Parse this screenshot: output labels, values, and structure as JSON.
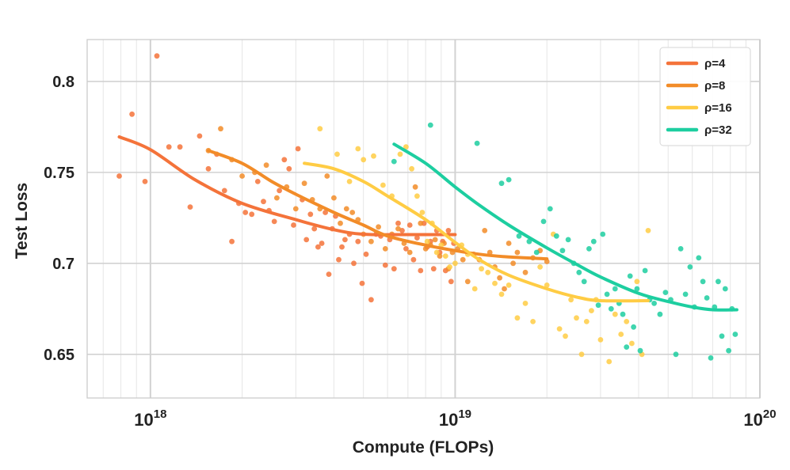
{
  "chart_data": {
    "type": "scatter",
    "xlabel": "Compute (FLOPs)",
    "ylabel": "Test Loss",
    "xscale": "log",
    "xlim": [
      6.2e+17,
      1e+20
    ],
    "ylim": [
      0.626,
      0.823
    ],
    "grid": true,
    "legend_position": "top-right",
    "x_ticks": [
      {
        "value": 1e+18,
        "base": "10",
        "exp": "18"
      },
      {
        "value": 1e+19,
        "base": "10",
        "exp": "19"
      },
      {
        "value": 1e+20,
        "base": "10",
        "exp": "20"
      }
    ],
    "y_ticks": [
      {
        "value": 0.65,
        "label": "0.65"
      },
      {
        "value": 0.7,
        "label": "0.7"
      },
      {
        "value": 0.75,
        "label": "0.75"
      },
      {
        "value": 0.8,
        "label": "0.8"
      }
    ],
    "series": [
      {
        "name": "ρ=4",
        "color": "#F4733A",
        "fit": [
          [
            7.9e+17,
            0.7695
          ],
          [
            1e+18,
            0.7625
          ],
          [
            1.4e+18,
            0.746
          ],
          [
            2e+18,
            0.733
          ],
          [
            3e+18,
            0.724
          ],
          [
            4e+18,
            0.7185
          ],
          [
            5e+18,
            0.716
          ],
          [
            7e+18,
            0.7158
          ],
          [
            1e+19,
            0.7158
          ]
        ],
        "points": [
          [
            7.9e+17,
            0.748
          ],
          [
            8.7e+17,
            0.782
          ],
          [
            9.6e+17,
            0.745
          ],
          [
            1.05e+18,
            0.814
          ],
          [
            1.15e+18,
            0.764
          ],
          [
            1.25e+18,
            0.764
          ],
          [
            1.35e+18,
            0.731
          ],
          [
            1.45e+18,
            0.77
          ],
          [
            1.55e+18,
            0.752
          ],
          [
            1.65e+18,
            0.76
          ],
          [
            1.75e+18,
            0.74
          ],
          [
            1.85e+18,
            0.712
          ],
          [
            1.95e+18,
            0.733
          ],
          [
            2.05e+18,
            0.728
          ],
          [
            2.15e+18,
            0.727
          ],
          [
            2.25e+18,
            0.745
          ],
          [
            2.35e+18,
            0.734
          ],
          [
            2.45e+18,
            0.729
          ],
          [
            2.55e+18,
            0.723
          ],
          [
            2.65e+18,
            0.74
          ],
          [
            2.75e+18,
            0.757
          ],
          [
            2.85e+18,
            0.752
          ],
          [
            2.95e+18,
            0.721
          ],
          [
            3.05e+18,
            0.763
          ],
          [
            3.15e+18,
            0.735
          ],
          [
            3.25e+18,
            0.713
          ],
          [
            3.35e+18,
            0.727
          ],
          [
            3.45e+18,
            0.719
          ],
          [
            3.55e+18,
            0.709
          ],
          [
            3.65e+18,
            0.711
          ],
          [
            3.75e+18,
            0.728
          ],
          [
            3.85e+18,
            0.694
          ],
          [
            3.95e+18,
            0.719
          ],
          [
            4.05e+18,
            0.726
          ],
          [
            4.15e+18,
            0.702
          ],
          [
            4.25e+18,
            0.709
          ],
          [
            4.35e+18,
            0.713
          ],
          [
            4.5e+18,
            0.716
          ],
          [
            4.65e+18,
            0.7
          ],
          [
            4.8e+18,
            0.712
          ],
          [
            4.95e+18,
            0.689
          ],
          [
            5.1e+18,
            0.705
          ],
          [
            5.3e+18,
            0.68
          ],
          [
            5.5e+18,
            0.716
          ],
          [
            5.7e+18,
            0.715
          ],
          [
            5.9e+18,
            0.699
          ],
          [
            6.1e+18,
            0.713
          ],
          [
            6.3e+18,
            0.697
          ],
          [
            6.5e+18,
            0.722
          ],
          [
            6.7e+18,
            0.718
          ],
          [
            6.9e+18,
            0.708
          ],
          [
            7.1e+18,
            0.721
          ],
          [
            7.3e+18,
            0.702
          ],
          [
            7.5e+18,
            0.714
          ],
          [
            7.7e+18,
            0.696
          ],
          [
            7.9e+18,
            0.722
          ],
          [
            8.1e+18,
            0.709
          ],
          [
            8.3e+18,
            0.712
          ],
          [
            8.5e+18,
            0.697
          ],
          [
            8.7e+18,
            0.718
          ],
          [
            8.9e+18,
            0.706
          ],
          [
            9.1e+18,
            0.712
          ],
          [
            9.3e+18,
            0.696
          ],
          [
            9.5e+18,
            0.718
          ],
          [
            9.7e+18,
            0.69
          ],
          [
            9.9e+18,
            0.711
          ]
        ]
      },
      {
        "name": "ρ=8",
        "color": "#F28C28",
        "fit": [
          [
            1.55e+18,
            0.762
          ],
          [
            2e+18,
            0.755
          ],
          [
            2.5e+18,
            0.745
          ],
          [
            3e+18,
            0.738
          ],
          [
            4e+18,
            0.728
          ],
          [
            5e+18,
            0.721
          ],
          [
            6e+18,
            0.715
          ],
          [
            8e+18,
            0.71
          ],
          [
            1e+19,
            0.707
          ],
          [
            1.2e+19,
            0.705
          ],
          [
            1.5e+19,
            0.7035
          ],
          [
            2e+19,
            0.7025
          ]
        ],
        "points": [
          [
            1.55e+18,
            0.762
          ],
          [
            1.7e+18,
            0.774
          ],
          [
            1.85e+18,
            0.757
          ],
          [
            2e+18,
            0.748
          ],
          [
            2.2e+18,
            0.75
          ],
          [
            2.4e+18,
            0.754
          ],
          [
            2.6e+18,
            0.736
          ],
          [
            2.8e+18,
            0.742
          ],
          [
            3e+18,
            0.73
          ],
          [
            3.2e+18,
            0.744
          ],
          [
            3.4e+18,
            0.735
          ],
          [
            3.6e+18,
            0.73
          ],
          [
            3.8e+18,
            0.748
          ],
          [
            4e+18,
            0.736
          ],
          [
            4.2e+18,
            0.722
          ],
          [
            4.4e+18,
            0.73
          ],
          [
            4.6e+18,
            0.728
          ],
          [
            4.8e+18,
            0.724
          ],
          [
            5e+18,
            0.716
          ],
          [
            5.3e+18,
            0.712
          ],
          [
            5.6e+18,
            0.72
          ],
          [
            5.9e+18,
            0.708
          ],
          [
            6.2e+18,
            0.716
          ],
          [
            6.5e+18,
            0.719
          ],
          [
            6.8e+18,
            0.711
          ],
          [
            7.1e+18,
            0.706
          ],
          [
            7.4e+18,
            0.742
          ],
          [
            7.7e+18,
            0.722
          ],
          [
            8e+18,
            0.708
          ],
          [
            8.3e+18,
            0.71
          ],
          [
            8.6e+18,
            0.713
          ],
          [
            8.9e+18,
            0.704
          ],
          [
            9.2e+18,
            0.711
          ],
          [
            9.5e+18,
            0.697
          ],
          [
            9.8e+18,
            0.706
          ],
          [
            1.02e+19,
            0.708
          ],
          [
            1.06e+19,
            0.702
          ],
          [
            1.1e+19,
            0.69
          ],
          [
            1.15e+19,
            0.705
          ],
          [
            1.2e+19,
            0.702
          ],
          [
            1.25e+19,
            0.718
          ],
          [
            1.3e+19,
            0.706
          ],
          [
            1.35e+19,
            0.698
          ],
          [
            1.4e+19,
            0.692
          ],
          [
            1.45e+19,
            0.686
          ],
          [
            1.5e+19,
            0.711
          ],
          [
            1.55e+19,
            0.7
          ],
          [
            1.6e+19,
            0.706
          ],
          [
            1.7e+19,
            0.695
          ],
          [
            1.8e+19,
            0.703
          ],
          [
            1.9e+19,
            0.707
          ],
          [
            2e+19,
            0.701
          ]
        ]
      },
      {
        "name": "ρ=16",
        "color": "#FFCC44",
        "fit": [
          [
            3.2e+18,
            0.755
          ],
          [
            4e+18,
            0.752
          ],
          [
            5e+18,
            0.745
          ],
          [
            6e+18,
            0.737
          ],
          [
            8e+18,
            0.724
          ],
          [
            1e+19,
            0.7115
          ],
          [
            1.2e+19,
            0.702
          ],
          [
            1.5e+19,
            0.6935
          ],
          [
            2e+19,
            0.686
          ],
          [
            2.5e+19,
            0.6815
          ],
          [
            3e+19,
            0.6795
          ],
          [
            4.3e+19,
            0.6795
          ]
        ],
        "points": [
          [
            3.6e+18,
            0.774
          ],
          [
            4.1e+18,
            0.76
          ],
          [
            4.5e+18,
            0.745
          ],
          [
            4.8e+18,
            0.763
          ],
          [
            5e+18,
            0.757
          ],
          [
            5.4e+18,
            0.759
          ],
          [
            5.8e+18,
            0.743
          ],
          [
            6.2e+18,
            0.737
          ],
          [
            6.6e+18,
            0.76
          ],
          [
            6.9e+18,
            0.764
          ],
          [
            7.2e+18,
            0.752
          ],
          [
            7.5e+18,
            0.737
          ],
          [
            7.8e+18,
            0.728
          ],
          [
            8.1e+18,
            0.712
          ],
          [
            8.4e+18,
            0.722
          ],
          [
            8.7e+18,
            0.706
          ],
          [
            9e+18,
            0.71
          ],
          [
            9.3e+18,
            0.704
          ],
          [
            9.6e+18,
            0.698
          ],
          [
            1e+19,
            0.7
          ],
          [
            1.05e+19,
            0.71
          ],
          [
            1.1e+19,
            0.705
          ],
          [
            1.16e+19,
            0.686
          ],
          [
            1.22e+19,
            0.697
          ],
          [
            1.28e+19,
            0.695
          ],
          [
            1.35e+19,
            0.689
          ],
          [
            1.42e+19,
            0.683
          ],
          [
            1.5e+19,
            0.688
          ],
          [
            1.6e+19,
            0.67
          ],
          [
            1.7e+19,
            0.678
          ],
          [
            1.8e+19,
            0.668
          ],
          [
            1.9e+19,
            0.698
          ],
          [
            2e+19,
            0.688
          ],
          [
            2.1e+19,
            0.716
          ],
          [
            2.2e+19,
            0.664
          ],
          [
            2.3e+19,
            0.66
          ],
          [
            2.4e+19,
            0.68
          ],
          [
            2.5e+19,
            0.67
          ],
          [
            2.6e+19,
            0.65
          ],
          [
            2.7e+19,
            0.668
          ],
          [
            2.8e+19,
            0.674
          ],
          [
            2.9e+19,
            0.68
          ],
          [
            3e+19,
            0.658
          ],
          [
            3.2e+19,
            0.646
          ],
          [
            3.35e+19,
            0.672
          ],
          [
            3.5e+19,
            0.661
          ],
          [
            3.65e+19,
            0.668
          ],
          [
            3.8e+19,
            0.656
          ],
          [
            3.95e+19,
            0.69
          ],
          [
            4.1e+19,
            0.65
          ],
          [
            4.3e+19,
            0.718
          ]
        ]
      },
      {
        "name": "ρ=32",
        "color": "#1DCEA0",
        "fit": [
          [
            6.3e+18,
            0.7655
          ],
          [
            8e+18,
            0.755
          ],
          [
            1e+19,
            0.742
          ],
          [
            1.2e+19,
            0.732
          ],
          [
            1.5e+19,
            0.721
          ],
          [
            2e+19,
            0.7085
          ],
          [
            2.5e+19,
            0.6995
          ],
          [
            3e+19,
            0.6925
          ],
          [
            4e+19,
            0.6835
          ],
          [
            5e+19,
            0.679
          ],
          [
            6e+19,
            0.676
          ],
          [
            7e+19,
            0.6745
          ],
          [
            8.4e+19,
            0.6745
          ]
        ],
        "points": [
          [
            6.3e+18,
            0.756
          ],
          [
            8.3e+18,
            0.776
          ],
          [
            1.18e+19,
            0.766
          ],
          [
            1.42e+19,
            0.744
          ],
          [
            1.5e+19,
            0.746
          ],
          [
            1.62e+19,
            0.715
          ],
          [
            1.75e+19,
            0.712
          ],
          [
            1.85e+19,
            0.706
          ],
          [
            1.95e+19,
            0.723
          ],
          [
            2.05e+19,
            0.73
          ],
          [
            2.15e+19,
            0.715
          ],
          [
            2.25e+19,
            0.707
          ],
          [
            2.35e+19,
            0.713
          ],
          [
            2.45e+19,
            0.7
          ],
          [
            2.55e+19,
            0.695
          ],
          [
            2.65e+19,
            0.69
          ],
          [
            2.75e+19,
            0.708
          ],
          [
            2.85e+19,
            0.712
          ],
          [
            2.95e+19,
            0.677
          ],
          [
            3.05e+19,
            0.716
          ],
          [
            3.15e+19,
            0.683
          ],
          [
            3.25e+19,
            0.675
          ],
          [
            3.35e+19,
            0.686
          ],
          [
            3.45e+19,
            0.678
          ],
          [
            3.55e+19,
            0.672
          ],
          [
            3.65e+19,
            0.654
          ],
          [
            3.75e+19,
            0.693
          ],
          [
            3.85e+19,
            0.665
          ],
          [
            3.95e+19,
            0.686
          ],
          [
            4.05e+19,
            0.652
          ],
          [
            4.2e+19,
            0.696
          ],
          [
            4.35e+19,
            0.68
          ],
          [
            4.5e+19,
            0.678
          ],
          [
            4.7e+19,
            0.672
          ],
          [
            4.9e+19,
            0.684
          ],
          [
            5.1e+19,
            0.68
          ],
          [
            5.3e+19,
            0.65
          ],
          [
            5.5e+19,
            0.708
          ],
          [
            5.7e+19,
            0.683
          ],
          [
            5.9e+19,
            0.698
          ],
          [
            6.1e+19,
            0.676
          ],
          [
            6.3e+19,
            0.703
          ],
          [
            6.5e+19,
            0.69
          ],
          [
            6.7e+19,
            0.681
          ],
          [
            6.9e+19,
            0.648
          ],
          [
            7.1e+19,
            0.676
          ],
          [
            7.3e+19,
            0.69
          ],
          [
            7.5e+19,
            0.66
          ],
          [
            7.7e+19,
            0.686
          ],
          [
            7.9e+19,
            0.652
          ],
          [
            8.1e+19,
            0.675
          ],
          [
            8.3e+19,
            0.661
          ]
        ]
      }
    ]
  }
}
